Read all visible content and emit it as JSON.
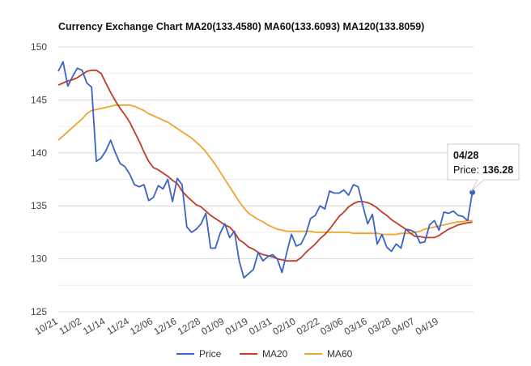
{
  "chart_data": {
    "type": "line",
    "title": "Currency Exchange Chart MA20(133.4580) MA60(133.6093) MA120(133.8059)",
    "ylim": [
      125,
      150
    ],
    "y_ticks": [
      125,
      130,
      135,
      140,
      145,
      150
    ],
    "grid": true,
    "legend_position": "bottom",
    "x_tick_labels": [
      "10/21",
      "11/02",
      "11/14",
      "11/24",
      "12/06",
      "12/16",
      "12/28",
      "01/09",
      "01/19",
      "01/31",
      "02/10",
      "02/22",
      "03/06",
      "03/16",
      "03/28",
      "04/07",
      "04/19"
    ],
    "x_tick_every": 5,
    "last_x_label": "04/28",
    "series": [
      {
        "name": "Price",
        "color": "#3b62c4",
        "values": [
          147.7,
          148.6,
          146.3,
          147.2,
          148.0,
          147.8,
          146.6,
          146.2,
          139.2,
          139.5,
          140.2,
          141.2,
          140.0,
          139.0,
          138.7,
          138.0,
          137.0,
          136.8,
          137.0,
          135.5,
          135.8,
          136.9,
          136.6,
          137.5,
          135.4,
          137.6,
          137.0,
          133.0,
          132.5,
          132.8,
          133.3,
          134.3,
          131.0,
          131.0,
          132.4,
          133.3,
          132.0,
          132.6,
          129.8,
          128.2,
          128.6,
          129.0,
          130.6,
          129.8,
          130.2,
          130.4,
          130.0,
          128.7,
          130.6,
          132.3,
          131.2,
          131.4,
          132.3,
          133.8,
          134.1,
          135.0,
          134.7,
          136.4,
          136.2,
          136.2,
          136.5,
          136.0,
          137.0,
          136.8,
          135.0,
          133.3,
          134.2,
          131.4,
          132.3,
          131.1,
          130.7,
          131.4,
          131.0,
          132.8,
          132.7,
          132.5,
          131.5,
          131.6,
          133.2,
          133.6,
          132.7,
          134.4,
          134.3,
          134.5,
          134.1,
          134.0,
          133.6,
          136.28
        ]
      },
      {
        "name": "MA20",
        "color": "#c23b22",
        "values": [
          146.4,
          146.6,
          146.8,
          146.9,
          147.1,
          147.4,
          147.7,
          147.8,
          147.8,
          147.5,
          146.6,
          145.7,
          144.9,
          144.2,
          143.6,
          142.9,
          142.0,
          141.1,
          140.1,
          139.2,
          138.6,
          138.4,
          138.1,
          137.8,
          137.4,
          137.1,
          136.4,
          135.9,
          135.5,
          135.1,
          134.9,
          134.5,
          134.1,
          133.8,
          133.5,
          133.2,
          133.0,
          132.5,
          131.8,
          131.5,
          131.1,
          130.9,
          130.6,
          130.4,
          130.3,
          130.2,
          130.0,
          129.9,
          129.8,
          129.8,
          129.8,
          130.1,
          130.6,
          131.0,
          131.4,
          131.9,
          132.3,
          132.8,
          133.4,
          134.0,
          134.4,
          134.9,
          135.2,
          135.4,
          135.4,
          135.3,
          135.1,
          134.8,
          134.4,
          134.1,
          133.7,
          133.4,
          133.1,
          132.8,
          132.4,
          132.1,
          132.1,
          132.0,
          132.0,
          132.0,
          132.2,
          132.5,
          132.8,
          133.0,
          133.2,
          133.3,
          133.4,
          133.46
        ]
      },
      {
        "name": "MA60",
        "color": "#f0a32f",
        "values": [
          141.2,
          141.6,
          142.0,
          142.4,
          142.8,
          143.2,
          143.7,
          144.0,
          144.1,
          144.2,
          144.3,
          144.4,
          144.5,
          144.5,
          144.5,
          144.5,
          144.4,
          144.2,
          144.0,
          143.7,
          143.5,
          143.3,
          143.1,
          142.9,
          142.6,
          142.3,
          142.0,
          141.7,
          141.4,
          141.0,
          140.6,
          140.1,
          139.5,
          138.9,
          138.2,
          137.5,
          136.8,
          136.1,
          135.4,
          134.8,
          134.3,
          134.0,
          133.7,
          133.5,
          133.2,
          133.0,
          132.8,
          132.7,
          132.6,
          132.6,
          132.6,
          132.6,
          132.6,
          132.6,
          132.5,
          132.5,
          132.5,
          132.5,
          132.5,
          132.5,
          132.5,
          132.5,
          132.4,
          132.4,
          132.4,
          132.4,
          132.4,
          132.4,
          132.3,
          132.3,
          132.3,
          132.3,
          132.4,
          132.4,
          132.4,
          132.5,
          132.6,
          132.8,
          132.9,
          133.0,
          133.1,
          133.2,
          133.3,
          133.4,
          133.5,
          133.5,
          133.6,
          133.61
        ]
      }
    ],
    "tooltip": {
      "date": "04/28",
      "label": "Price:",
      "value": "136.28"
    }
  }
}
